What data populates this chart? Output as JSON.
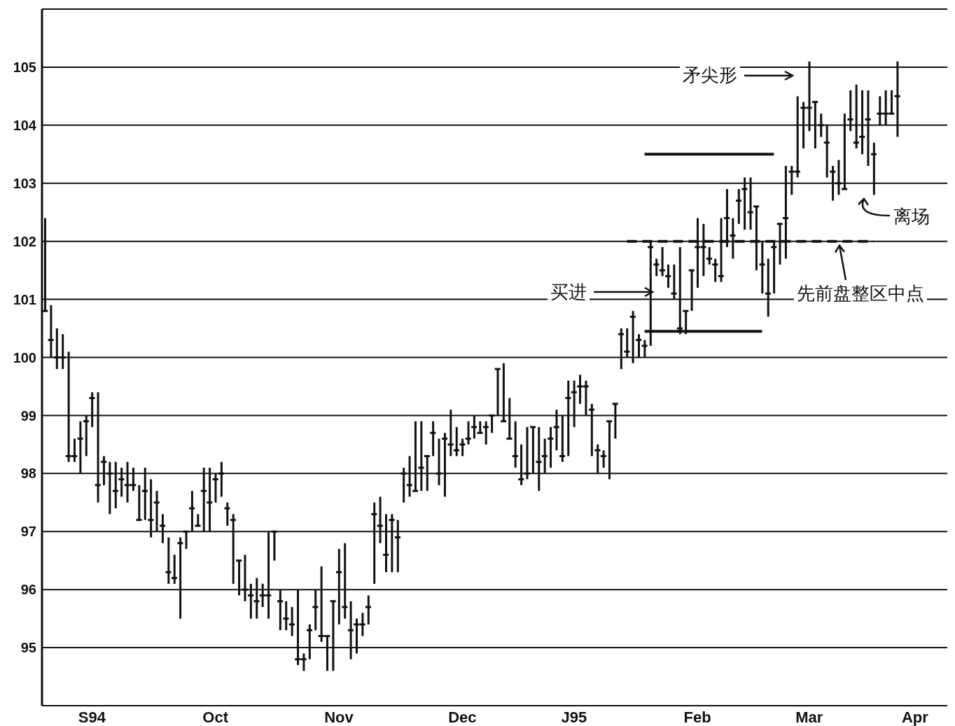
{
  "chart_data": {
    "type": "bar",
    "categories": [
      null,
      null,
      null,
      null,
      null,
      null,
      null,
      null,
      "S94",
      null,
      null,
      null,
      null,
      null,
      null,
      null,
      null,
      null,
      null,
      null,
      null,
      null,
      null,
      null,
      null,
      null,
      null,
      null,
      null,
      "Oct",
      null,
      null,
      null,
      null,
      null,
      null,
      null,
      null,
      null,
      null,
      null,
      null,
      null,
      null,
      null,
      null,
      null,
      null,
      null,
      null,
      "Nov",
      null,
      null,
      null,
      null,
      null,
      null,
      null,
      null,
      null,
      null,
      null,
      null,
      null,
      null,
      null,
      null,
      null,
      null,
      null,
      null,
      "Dec",
      null,
      null,
      null,
      null,
      null,
      null,
      null,
      null,
      null,
      null,
      null,
      null,
      null,
      null,
      null,
      null,
      null,
      null,
      "J95",
      null,
      null,
      null,
      null,
      null,
      null,
      null,
      null,
      null,
      null,
      null,
      null,
      null,
      null,
      null,
      null,
      null,
      null,
      null,
      null,
      "Feb",
      null,
      null,
      null,
      null,
      null,
      null,
      null,
      null,
      null,
      null,
      null,
      null,
      null,
      null,
      null,
      null,
      null,
      null,
      "Mar",
      null,
      null,
      null,
      null,
      null,
      null,
      null,
      null,
      null,
      null,
      null,
      null,
      null,
      null,
      null,
      null,
      null,
      "Apr",
      null,
      null,
      null,
      null,
      null
    ],
    "series": [
      {
        "color": "#111111",
        "base": [
          100.8,
          100.0,
          99.8,
          99.8,
          98.2,
          98.2,
          98.0,
          98.3,
          98.8,
          97.5,
          97.8,
          97.3,
          97.4,
          97.6,
          97.5,
          97.7,
          97.2,
          97.2,
          96.9,
          97.0,
          96.8,
          96.1,
          96.1,
          95.5,
          96.7,
          97.0,
          97.1,
          97.0,
          97.0,
          97.5,
          97.6,
          97.1,
          96.1,
          95.9,
          95.8,
          95.5,
          95.5,
          95.7,
          95.5,
          96.5,
          95.3,
          95.3,
          95.2,
          94.7,
          94.6,
          94.8,
          95.3,
          95.1,
          94.6,
          94.6,
          95.4,
          95.5,
          94.8,
          94.9,
          95.2,
          95.4,
          96.1,
          96.8,
          96.3,
          96.3,
          96.3,
          97.5,
          97.6,
          97.7,
          97.7,
          97.7,
          98.3,
          97.8,
          97.6,
          98.3,
          98.3,
          98.3,
          98.5,
          98.6,
          98.7,
          98.5,
          98.7,
          99.0,
          98.9,
          98.6,
          98.1,
          97.8,
          97.9,
          98.0,
          97.7,
          98.0,
          98.1,
          98.4,
          98.2,
          98.3,
          98.8,
          99.2,
          99.0,
          98.3,
          98.0,
          98.1,
          97.9,
          98.6,
          99.8,
          100.0,
          99.9,
          100.0,
          100.0,
          100.2,
          101.4,
          101.4,
          101.2,
          101.0,
          100.4,
          100.4,
          100.8,
          101.2,
          101.4,
          101.6,
          101.3,
          101.3,
          101.9,
          101.7,
          102.3,
          102.2,
          102.2,
          101.5,
          101.1,
          100.7,
          101.1,
          101.6,
          101.7,
          102.8,
          103.1,
          103.6,
          103.9,
          103.6,
          103.8,
          103.1,
          102.7,
          102.8,
          102.9,
          103.9,
          103.6,
          103.5,
          103.3,
          102.8,
          104.0,
          104.0,
          104.2,
          103.8,
          null,
          null,
          null,
          null,
          null,
          null,
          null,
          null
        ],
        "values": [
          1.6,
          0.9,
          0.7,
          0.6,
          1.9,
          0.4,
          0.9,
          0.7,
          0.6,
          1.9,
          0.5,
          0.9,
          0.8,
          0.5,
          0.7,
          0.4,
          0.6,
          0.9,
          1.0,
          0.7,
          0.5,
          0.8,
          0.5,
          1.4,
          0.3,
          0.7,
          0.2,
          1.1,
          1.1,
          0.5,
          0.6,
          0.4,
          1.2,
          0.6,
          0.8,
          0.6,
          0.7,
          0.4,
          1.5,
          0.5,
          0.7,
          0.5,
          0.5,
          1.3,
          0.3,
          0.6,
          0.7,
          1.3,
          0.6,
          1.2,
          1.3,
          1.3,
          1.0,
          0.6,
          0.4,
          0.5,
          1.4,
          0.8,
          1.0,
          1.0,
          0.9,
          0.6,
          0.7,
          1.2,
          1.2,
          0.6,
          0.6,
          0.8,
          1.1,
          0.8,
          0.5,
          0.3,
          0.4,
          0.4,
          0.2,
          0.4,
          0.3,
          0.8,
          1.0,
          0.7,
          0.8,
          0.7,
          0.9,
          0.8,
          1.1,
          0.6,
          0.7,
          0.7,
          0.8,
          1.3,
          0.8,
          0.5,
          0.6,
          0.9,
          0.5,
          0.3,
          1.0,
          0.6,
          0.7,
          0.5,
          0.9,
          0.4,
          0.3,
          1.8,
          0.3,
          0.5,
          0.4,
          0.6,
          1.5,
          0.4,
          0.7,
          1.2,
          0.9,
          0.3,
          0.4,
          1.1,
          1.0,
          0.7,
          0.6,
          0.9,
          0.9,
          1.1,
          0.9,
          1.0,
          0.9,
          0.7,
          1.6,
          0.5,
          1.4,
          0.8,
          1.2,
          0.8,
          0.4,
          0.9,
          0.6,
          0.6,
          1.3,
          0.7,
          1.1,
          1.1,
          1.3,
          0.9,
          0.5,
          0.6,
          0.4,
          1.3,
          null,
          null,
          null,
          null,
          null,
          null,
          null,
          null
        ]
      },
      {
        "type": "scatter",
        "color": "#111111",
        "values": [
          100.8,
          100.3,
          100.0,
          100.0,
          98.3,
          98.3,
          98.6,
          98.9,
          99.3,
          97.8,
          98.2,
          98.0,
          97.7,
          97.9,
          97.8,
          97.8,
          97.2,
          97.7,
          97.2,
          97.5,
          97.1,
          96.3,
          96.2,
          96.8,
          97.0,
          97.4,
          97.1,
          97.7,
          97.5,
          97.9,
          98.0,
          97.4,
          97.2,
          96.5,
          96.0,
          95.9,
          95.8,
          95.9,
          95.9,
          97.0,
          95.8,
          95.5,
          95.4,
          94.8,
          94.8,
          95.3,
          95.7,
          95.2,
          95.2,
          95.8,
          96.3,
          95.7,
          95.3,
          95.4,
          95.4,
          95.7,
          97.3,
          97.1,
          96.6,
          97.2,
          96.9,
          98.0,
          97.8,
          97.7,
          98.1,
          98.3,
          98.7,
          98.0,
          98.6,
          98.5,
          98.4,
          98.5,
          98.6,
          98.8,
          98.7,
          98.8,
          99.0,
          99.8,
          98.9,
          98.6,
          98.3,
          97.9,
          98.0,
          98.8,
          98.2,
          98.3,
          98.6,
          98.8,
          98.3,
          99.3,
          99.4,
          99.5,
          99.5,
          99.1,
          98.4,
          98.3,
          98.9,
          99.2,
          100.4,
          100.1,
          100.7,
          100.3,
          100.2,
          101.9,
          101.6,
          101.5,
          101.4,
          101.1,
          100.5,
          100.8,
          101.5,
          101.9,
          101.9,
          101.7,
          101.6,
          101.4,
          102.4,
          102.1,
          102.7,
          102.9,
          102.5,
          102.6,
          101.6,
          101.1,
          101.9,
          102.3,
          102.4,
          103.2,
          103.2,
          104.3,
          104.3,
          104.4,
          104.0,
          103.7,
          103.2,
          103.0,
          102.9,
          104.1,
          103.7,
          103.8,
          104.1,
          103.5,
          104.2,
          104.2,
          104.2,
          104.5,
          null,
          null,
          null,
          null,
          null,
          null,
          null,
          null
        ]
      },
      {
        "type": "line",
        "color": "#111111",
        "line_style": "dashed",
        "values": [
          null,
          null,
          null,
          null,
          null,
          null,
          null,
          null,
          null,
          null,
          null,
          null,
          null,
          null,
          null,
          null,
          null,
          null,
          null,
          null,
          null,
          null,
          null,
          null,
          null,
          null,
          null,
          null,
          null,
          null,
          null,
          null,
          null,
          null,
          null,
          null,
          null,
          null,
          null,
          null,
          null,
          null,
          null,
          null,
          null,
          null,
          null,
          null,
          null,
          null,
          null,
          null,
          null,
          null,
          null,
          null,
          null,
          null,
          null,
          null,
          null,
          null,
          null,
          null,
          null,
          null,
          null,
          null,
          null,
          null,
          null,
          null,
          null,
          null,
          null,
          null,
          null,
          null,
          null,
          null,
          null,
          null,
          null,
          null,
          null,
          null,
          null,
          null,
          null,
          null,
          null,
          null,
          null,
          null,
          null,
          null,
          null,
          null,
          null,
          102,
          102,
          102,
          102,
          102,
          102,
          102,
          102,
          102,
          102,
          102,
          102,
          102,
          102,
          102,
          102,
          102,
          102,
          102,
          102,
          102,
          102,
          102,
          102,
          102,
          102,
          102,
          102,
          102,
          102,
          102,
          102,
          102,
          102,
          102,
          102,
          102,
          102,
          102,
          102,
          102,
          102,
          102,
          null,
          null,
          null,
          null,
          null,
          null,
          null,
          null,
          null,
          null,
          null,
          null
        ]
      },
      {
        "type": "line",
        "color": "#111111",
        "line_style": "solid",
        "values": [
          null,
          null,
          null,
          null,
          null,
          null,
          null,
          null,
          null,
          null,
          null,
          null,
          null,
          null,
          null,
          null,
          null,
          null,
          null,
          null,
          null,
          null,
          null,
          null,
          null,
          null,
          null,
          null,
          null,
          null,
          null,
          null,
          null,
          null,
          null,
          null,
          null,
          null,
          null,
          null,
          null,
          null,
          null,
          null,
          null,
          null,
          null,
          null,
          null,
          null,
          null,
          null,
          null,
          null,
          null,
          null,
          null,
          null,
          null,
          null,
          null,
          null,
          null,
          null,
          null,
          null,
          null,
          null,
          null,
          null,
          null,
          null,
          null,
          null,
          null,
          null,
          null,
          null,
          null,
          null,
          null,
          null,
          null,
          null,
          null,
          null,
          null,
          null,
          null,
          null,
          null,
          null,
          null,
          null,
          null,
          null,
          null,
          null,
          null,
          null,
          null,
          null,
          103.5,
          103.5,
          103.5,
          103.5,
          103.5,
          103.5,
          103.5,
          103.5,
          103.5,
          103.5,
          103.5,
          103.5,
          103.5,
          103.5,
          103.5,
          103.5,
          103.5,
          103.5,
          103.5,
          103.5,
          103.5,
          103.5,
          103.5,
          null,
          null,
          null,
          null,
          null,
          null,
          null,
          null,
          null,
          null,
          null,
          null,
          null,
          null,
          null,
          null,
          null,
          null,
          null,
          null,
          null,
          null,
          null,
          null,
          null,
          null,
          null,
          null,
          null
        ]
      },
      {
        "type": "line",
        "color": "#111111",
        "line_style": "solid",
        "values": [
          null,
          null,
          null,
          null,
          null,
          null,
          null,
          null,
          null,
          null,
          null,
          null,
          null,
          null,
          null,
          null,
          null,
          null,
          null,
          null,
          null,
          null,
          null,
          null,
          null,
          null,
          null,
          null,
          null,
          null,
          null,
          null,
          null,
          null,
          null,
          null,
          null,
          null,
          null,
          null,
          null,
          null,
          null,
          null,
          null,
          null,
          null,
          null,
          null,
          null,
          null,
          null,
          null,
          null,
          null,
          null,
          null,
          null,
          null,
          null,
          null,
          null,
          null,
          null,
          null,
          null,
          null,
          null,
          null,
          null,
          null,
          null,
          null,
          null,
          null,
          null,
          null,
          null,
          null,
          null,
          null,
          null,
          null,
          null,
          null,
          null,
          null,
          null,
          null,
          null,
          null,
          null,
          null,
          null,
          null,
          null,
          null,
          null,
          null,
          null,
          null,
          null,
          100.45,
          100.45,
          100.45,
          100.45,
          100.45,
          100.45,
          100.45,
          100.45,
          100.45,
          100.45,
          100.45,
          100.45,
          100.45,
          100.45,
          100.45,
          100.45,
          100.45,
          100.45,
          100.45,
          100.45,
          100.45,
          null,
          null,
          null,
          null,
          null,
          null,
          null,
          null,
          null,
          null,
          null,
          null,
          null,
          null,
          null,
          null,
          null,
          null,
          null,
          null,
          null,
          null,
          null,
          null,
          null,
          null,
          null,
          null,
          null,
          null,
          null
        ]
      }
    ],
    "ylim": [
      94,
      106
    ],
    "yticks": [
      95,
      96,
      97,
      98,
      99,
      100,
      101,
      102,
      103,
      104,
      105
    ],
    "grid": "y",
    "annotations": [
      "矛尖形",
      "买进",
      "离场",
      {
        "text": "先前盘整区中点",
        "y": 102
      }
    ]
  }
}
